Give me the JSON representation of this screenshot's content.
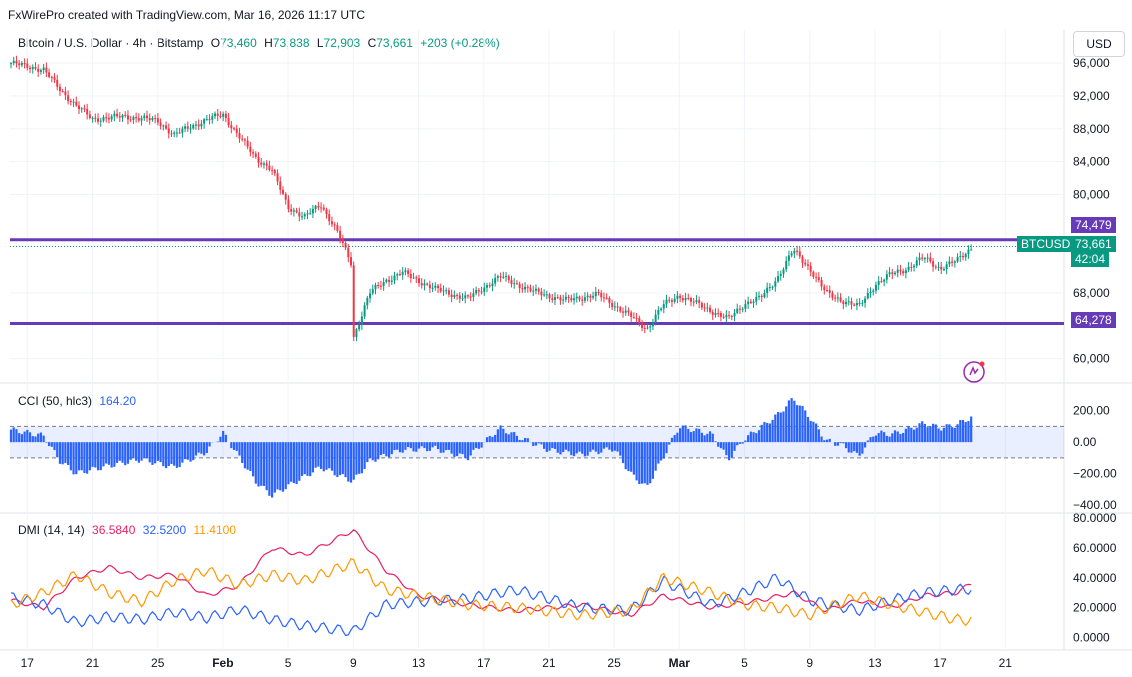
{
  "header": {
    "created_by": "FxWirePro created with TradingView.com, Mar 16, 2026 11:17 UTC",
    "symbol": "Bitcoin / U.S. Dollar · 4h · Bitstamp",
    "o_label": "O",
    "o_value": "73,460",
    "h_label": "H",
    "h_value": "73,838",
    "l_label": "L",
    "l_value": "72,903",
    "c_label": "C",
    "c_value": "73,661",
    "change": "+203 (+0.28%)",
    "currency": "USD"
  },
  "price_labels": {
    "resistance": "74,479",
    "ticker": "BTCUSD",
    "last_price": "73,661",
    "countdown": "42:04",
    "support": "64,278"
  },
  "colors": {
    "up": "#089981",
    "down": "#f23645",
    "level_line": "#673ab7",
    "cci": "#2962ff",
    "dmi_plus": "#e91e63",
    "dmi_minus": "#2962ff",
    "adx": "#ff9800"
  },
  "cci_panel": {
    "label": "CCI (50, hlc3)",
    "value": "164.20"
  },
  "dmi_panel": {
    "label": "DMI (14, 14)",
    "plus": "36.5840",
    "minus": "32.5200",
    "adx": "11.4100"
  },
  "chart_data": [
    {
      "type": "candlestick",
      "title": "Bitcoin / U.S. Dollar · 4h · Bitstamp",
      "ylim": [
        58000,
        96500
      ],
      "yticks": [
        "96,000",
        "92,000",
        "88,000",
        "84,000",
        "80,000",
        "68,000",
        "60,000"
      ],
      "xticks": [
        "17",
        "21",
        "25",
        "Feb",
        "5",
        "9",
        "13",
        "17",
        "21",
        "25",
        "Mar",
        "5",
        "9",
        "13",
        "17",
        "21"
      ],
      "horizontal_levels": [
        74479,
        64278
      ],
      "approx_close_path": [
        {
          "date": "2026-01-16",
          "close": 96000
        },
        {
          "date": "2026-01-18",
          "close": 95200
        },
        {
          "date": "2026-01-19",
          "close": 92800
        },
        {
          "date": "2026-01-20",
          "close": 90800
        },
        {
          "date": "2026-01-21",
          "close": 89200
        },
        {
          "date": "2026-01-23",
          "close": 89500
        },
        {
          "date": "2026-01-25",
          "close": 89000
        },
        {
          "date": "2026-01-26",
          "close": 87200
        },
        {
          "date": "2026-01-27",
          "close": 88300
        },
        {
          "date": "2026-01-29",
          "close": 89800
        },
        {
          "date": "2026-01-30",
          "close": 87000
        },
        {
          "date": "2026-01-31",
          "close": 84500
        },
        {
          "date": "2026-02-01",
          "close": 83000
        },
        {
          "date": "2026-02-02",
          "close": 78500
        },
        {
          "date": "2026-02-03",
          "close": 77200
        },
        {
          "date": "2026-02-04",
          "close": 78800
        },
        {
          "date": "2026-02-05",
          "close": 75500
        },
        {
          "date": "2026-02-06",
          "close": 71000
        },
        {
          "date": "2026-02-06",
          "close": 62500
        },
        {
          "date": "2026-02-07",
          "close": 68000
        },
        {
          "date": "2026-02-08",
          "close": 69500
        },
        {
          "date": "2026-02-09",
          "close": 70500
        },
        {
          "date": "2026-02-11",
          "close": 68500
        },
        {
          "date": "2026-02-13",
          "close": 67300
        },
        {
          "date": "2026-02-15",
          "close": 70000
        },
        {
          "date": "2026-02-17",
          "close": 68200
        },
        {
          "date": "2026-02-19",
          "close": 67100
        },
        {
          "date": "2026-02-21",
          "close": 67800
        },
        {
          "date": "2026-02-23",
          "close": 65200
        },
        {
          "date": "2026-02-24",
          "close": 63600
        },
        {
          "date": "2026-02-25",
          "close": 66500
        },
        {
          "date": "2026-02-26",
          "close": 67700
        },
        {
          "date": "2026-02-28",
          "close": 65800
        },
        {
          "date": "2026-03-01",
          "close": 64800
        },
        {
          "date": "2026-03-02",
          "close": 66700
        },
        {
          "date": "2026-03-03",
          "close": 67400
        },
        {
          "date": "2026-03-04",
          "close": 69800
        },
        {
          "date": "2026-03-05",
          "close": 73200
        },
        {
          "date": "2026-03-06",
          "close": 71000
        },
        {
          "date": "2026-03-07",
          "close": 68000
        },
        {
          "date": "2026-03-08",
          "close": 67100
        },
        {
          "date": "2026-03-09",
          "close": 66300
        },
        {
          "date": "2026-03-10",
          "close": 69000
        },
        {
          "date": "2026-03-11",
          "close": 70300
        },
        {
          "date": "2026-03-12",
          "close": 71000
        },
        {
          "date": "2026-03-13",
          "close": 72300
        },
        {
          "date": "2026-03-14",
          "close": 71000
        },
        {
          "date": "2026-03-15",
          "close": 71900
        },
        {
          "date": "2026-03-16",
          "close": 73661
        }
      ]
    },
    {
      "type": "bar",
      "title": "CCI (50, hlc3)",
      "ylim": [
        -400,
        300
      ],
      "yticks": [
        "200.00",
        "0.00",
        "−200.00",
        "−400.00"
      ],
      "bands": [
        100,
        -100
      ],
      "approx_path": [
        {
          "date": "2026-01-16",
          "value": 80
        },
        {
          "date": "2026-01-18",
          "value": 40
        },
        {
          "date": "2026-01-19",
          "value": -120
        },
        {
          "date": "2026-01-20",
          "value": -200
        },
        {
          "date": "2026-01-22",
          "value": -150
        },
        {
          "date": "2026-01-24",
          "value": -110
        },
        {
          "date": "2026-01-26",
          "value": -160
        },
        {
          "date": "2026-01-28",
          "value": -60
        },
        {
          "date": "2026-01-29",
          "value": 60
        },
        {
          "date": "2026-01-31",
          "value": -250
        },
        {
          "date": "2026-02-01",
          "value": -340
        },
        {
          "date": "2026-02-02",
          "value": -280
        },
        {
          "date": "2026-02-04",
          "value": -160
        },
        {
          "date": "2026-02-06",
          "value": -250
        },
        {
          "date": "2026-02-07",
          "value": -120
        },
        {
          "date": "2026-02-09",
          "value": -50
        },
        {
          "date": "2026-02-11",
          "value": -40
        },
        {
          "date": "2026-02-13",
          "value": -100
        },
        {
          "date": "2026-02-15",
          "value": 90
        },
        {
          "date": "2026-02-16",
          "value": 40
        },
        {
          "date": "2026-02-18",
          "value": -50
        },
        {
          "date": "2026-02-20",
          "value": -80
        },
        {
          "date": "2026-02-22",
          "value": -40
        },
        {
          "date": "2026-02-23",
          "value": -200
        },
        {
          "date": "2026-02-24",
          "value": -290
        },
        {
          "date": "2026-02-25",
          "value": -100
        },
        {
          "date": "2026-02-26",
          "value": 100
        },
        {
          "date": "2026-02-28",
          "value": 50
        },
        {
          "date": "2026-03-01",
          "value": -110
        },
        {
          "date": "2026-03-02",
          "value": 20
        },
        {
          "date": "2026-03-04",
          "value": 170
        },
        {
          "date": "2026-03-05",
          "value": 280
        },
        {
          "date": "2026-03-06",
          "value": 160
        },
        {
          "date": "2026-03-07",
          "value": 10
        },
        {
          "date": "2026-03-08",
          "value": -20
        },
        {
          "date": "2026-03-09",
          "value": -90
        },
        {
          "date": "2026-03-10",
          "value": 60
        },
        {
          "date": "2026-03-11",
          "value": 50
        },
        {
          "date": "2026-03-12",
          "value": 80
        },
        {
          "date": "2026-03-13",
          "value": 120
        },
        {
          "date": "2026-03-14",
          "value": 90
        },
        {
          "date": "2026-03-15",
          "value": 110
        },
        {
          "date": "2026-03-16",
          "value": 164.2
        }
      ]
    },
    {
      "type": "line",
      "title": "DMI (14, 14)",
      "ylim": [
        -5,
        82
      ],
      "yticks": [
        "80.0000",
        "60.0000",
        "40.0000",
        "20.0000",
        "0.0000"
      ],
      "series": [
        {
          "name": "36.5840",
          "color": "#e91e63",
          "values": [
            {
              "date": "2026-01-16",
              "value": 25
            },
            {
              "date": "2026-01-18",
              "value": 20
            },
            {
              "date": "2026-01-20",
              "value": 40
            },
            {
              "date": "2026-01-22",
              "value": 47
            },
            {
              "date": "2026-01-24",
              "value": 40
            },
            {
              "date": "2026-01-26",
              "value": 42
            },
            {
              "date": "2026-01-28",
              "value": 28
            },
            {
              "date": "2026-01-30",
              "value": 35
            },
            {
              "date": "2026-02-01",
              "value": 60
            },
            {
              "date": "2026-02-03",
              "value": 55
            },
            {
              "date": "2026-02-06",
              "value": 72
            },
            {
              "date": "2026-02-08",
              "value": 45
            },
            {
              "date": "2026-02-10",
              "value": 28
            },
            {
              "date": "2026-02-13",
              "value": 22
            },
            {
              "date": "2026-02-16",
              "value": 18
            },
            {
              "date": "2026-02-20",
              "value": 22
            },
            {
              "date": "2026-02-23",
              "value": 15
            },
            {
              "date": "2026-02-25",
              "value": 28
            },
            {
              "date": "2026-02-28",
              "value": 20
            },
            {
              "date": "2026-03-03",
              "value": 25
            },
            {
              "date": "2026-03-05",
              "value": 30
            },
            {
              "date": "2026-03-07",
              "value": 18
            },
            {
              "date": "2026-03-09",
              "value": 25
            },
            {
              "date": "2026-03-11",
              "value": 20
            },
            {
              "date": "2026-03-13",
              "value": 28
            },
            {
              "date": "2026-03-15",
              "value": 30
            },
            {
              "date": "2026-03-16",
              "value": 36.584
            }
          ]
        },
        {
          "name": "32.5200",
          "color": "#2962ff",
          "values": [
            {
              "date": "2026-01-16",
              "value": 27
            },
            {
              "date": "2026-01-18",
              "value": 22
            },
            {
              "date": "2026-01-20",
              "value": 10
            },
            {
              "date": "2026-01-22",
              "value": 14
            },
            {
              "date": "2026-01-24",
              "value": 12
            },
            {
              "date": "2026-01-26",
              "value": 17
            },
            {
              "date": "2026-01-28",
              "value": 13
            },
            {
              "date": "2026-01-30",
              "value": 19
            },
            {
              "date": "2026-02-01",
              "value": 12
            },
            {
              "date": "2026-02-03",
              "value": 8
            },
            {
              "date": "2026-02-06",
              "value": 4
            },
            {
              "date": "2026-02-08",
              "value": 22
            },
            {
              "date": "2026-02-10",
              "value": 24
            },
            {
              "date": "2026-02-13",
              "value": 26
            },
            {
              "date": "2026-02-16",
              "value": 32
            },
            {
              "date": "2026-02-20",
              "value": 20
            },
            {
              "date": "2026-02-23",
              "value": 18
            },
            {
              "date": "2026-02-25",
              "value": 38
            },
            {
              "date": "2026-02-28",
              "value": 22
            },
            {
              "date": "2026-03-02",
              "value": 30
            },
            {
              "date": "2026-03-04",
              "value": 40
            },
            {
              "date": "2026-03-06",
              "value": 25
            },
            {
              "date": "2026-03-09",
              "value": 18
            },
            {
              "date": "2026-03-11",
              "value": 25
            },
            {
              "date": "2026-03-13",
              "value": 30
            },
            {
              "date": "2026-03-15",
              "value": 32
            },
            {
              "date": "2026-03-16",
              "value": 32.52
            }
          ]
        },
        {
          "name": "11.4100",
          "color": "#ff9800",
          "values": [
            {
              "date": "2026-01-16",
              "value": 22
            },
            {
              "date": "2026-01-18",
              "value": 30
            },
            {
              "date": "2026-01-20",
              "value": 42
            },
            {
              "date": "2026-01-22",
              "value": 30
            },
            {
              "date": "2026-01-24",
              "value": 24
            },
            {
              "date": "2026-01-26",
              "value": 38
            },
            {
              "date": "2026-01-28",
              "value": 45
            },
            {
              "date": "2026-01-30",
              "value": 35
            },
            {
              "date": "2026-02-01",
              "value": 42
            },
            {
              "date": "2026-02-03",
              "value": 38
            },
            {
              "date": "2026-02-06",
              "value": 50
            },
            {
              "date": "2026-02-08",
              "value": 32
            },
            {
              "date": "2026-02-10",
              "value": 28
            },
            {
              "date": "2026-02-13",
              "value": 22
            },
            {
              "date": "2026-02-16",
              "value": 20
            },
            {
              "date": "2026-02-20",
              "value": 15
            },
            {
              "date": "2026-02-23",
              "value": 18
            },
            {
              "date": "2026-02-25",
              "value": 40
            },
            {
              "date": "2026-02-28",
              "value": 30
            },
            {
              "date": "2026-03-02",
              "value": 22
            },
            {
              "date": "2026-03-04",
              "value": 20
            },
            {
              "date": "2026-03-06",
              "value": 15
            },
            {
              "date": "2026-03-09",
              "value": 28
            },
            {
              "date": "2026-03-11",
              "value": 22
            },
            {
              "date": "2026-03-13",
              "value": 17
            },
            {
              "date": "2026-03-15",
              "value": 12
            },
            {
              "date": "2026-03-16",
              "value": 11.41
            }
          ]
        }
      ]
    }
  ]
}
